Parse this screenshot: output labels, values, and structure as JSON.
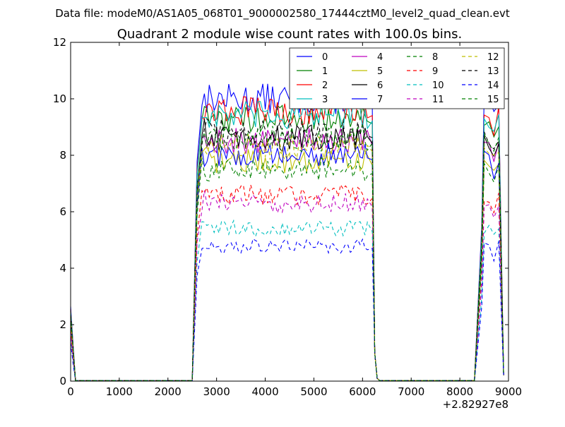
{
  "suptitle": "Data file: modeM0/AS1A05_068T01_9000002580_17444cztM0_level2_quad_clean.evt",
  "chart_data": {
    "type": "line",
    "title": "Quadrant 2 module wise count rates with 100.0s bins.",
    "xlabel": "",
    "ylabel": "",
    "x_offset_label": "+2.82927e8",
    "xlim": [
      0,
      9000
    ],
    "ylim": [
      0,
      12
    ],
    "x_ticks": [
      0,
      1000,
      2000,
      3000,
      4000,
      5000,
      6000,
      7000,
      8000,
      9000
    ],
    "x_tick_labels": [
      "0",
      "1000",
      "2000",
      "3000",
      "4000",
      "5000",
      "6000",
      "7000",
      "8000",
      "9000"
    ],
    "y_ticks": [
      0,
      2,
      4,
      6,
      8,
      10,
      12
    ],
    "y_tick_labels": [
      "0",
      "2",
      "4",
      "6",
      "8",
      "10",
      "12"
    ],
    "grid": false,
    "legend_position": "top-right",
    "legend_columns": 4,
    "gti_segments": [
      {
        "start": 0,
        "end": 100,
        "shape": "drop"
      },
      {
        "start": 2500,
        "end": 6300,
        "shape": "plateau"
      },
      {
        "start": 8300,
        "end": 8900,
        "shape": "plateau"
      }
    ],
    "series": [
      {
        "name": "0",
        "color": "#0000ff",
        "dash": "solid",
        "level": 10.0
      },
      {
        "name": "1",
        "color": "#008000",
        "dash": "solid",
        "level": 9.3
      },
      {
        "name": "2",
        "color": "#ff0000",
        "dash": "solid",
        "level": 9.6
      },
      {
        "name": "3",
        "color": "#00bfbf",
        "dash": "solid",
        "level": 9.4
      },
      {
        "name": "4",
        "color": "#bf00bf",
        "dash": "solid",
        "level": 8.5
      },
      {
        "name": "5",
        "color": "#bfbf00",
        "dash": "solid",
        "level": 7.8
      },
      {
        "name": "6",
        "color": "#000000",
        "dash": "solid",
        "level": 8.6
      },
      {
        "name": "7",
        "color": "#0000ff",
        "dash": "solid",
        "level": 8.0
      },
      {
        "name": "8",
        "color": "#008000",
        "dash": "dashed",
        "level": 7.5
      },
      {
        "name": "9",
        "color": "#ff0000",
        "dash": "dashed",
        "level": 6.6
      },
      {
        "name": "10",
        "color": "#00bfbf",
        "dash": "dashed",
        "level": 5.4
      },
      {
        "name": "11",
        "color": "#bf00bf",
        "dash": "dashed",
        "level": 6.3
      },
      {
        "name": "12",
        "color": "#bfbf00",
        "dash": "dashed",
        "level": 8.3
      },
      {
        "name": "13",
        "color": "#000000",
        "dash": "dashed",
        "level": 8.8
      },
      {
        "name": "14",
        "color": "#0000ff",
        "dash": "dashed",
        "level": 4.8
      },
      {
        "name": "15",
        "color": "#008000",
        "dash": "dashed",
        "level": 8.6
      }
    ]
  }
}
